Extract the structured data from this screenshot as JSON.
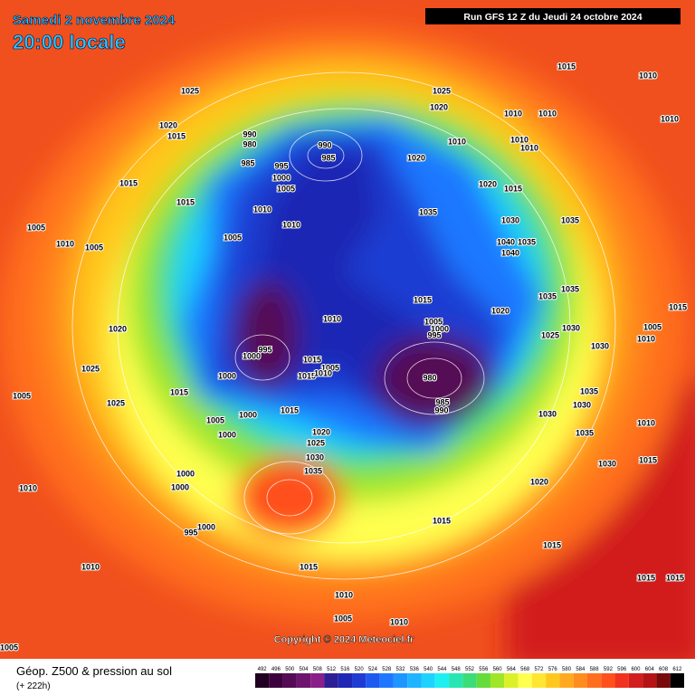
{
  "header": {
    "date": "Samedi 2 novembre 2024",
    "time": "20:00 locale",
    "run": "Run GFS 12 Z du Jeudi 24 octobre 2024"
  },
  "map": {
    "isobar_labels": [
      1015,
      1010,
      1010,
      1025,
      1025,
      1020,
      1010,
      1010,
      1020,
      1015,
      990,
      980,
      985,
      990,
      985,
      995,
      1000,
      1005,
      1020,
      1010,
      1010,
      1010,
      1015,
      1015,
      1020,
      1015,
      1010,
      1035,
      1030,
      1035,
      1010,
      1005,
      1005,
      1040,
      1035,
      1040,
      1010,
      1005,
      1035,
      1015,
      1035,
      1020,
      1010,
      1005,
      1000,
      995,
      1030,
      1025,
      1020,
      1005,
      1010,
      1000,
      995,
      1015,
      1005,
      1015,
      1010,
      980,
      1030,
      1015,
      1000,
      1025,
      985,
      990,
      1015,
      1005,
      1035,
      1030,
      1025,
      1030,
      1015,
      1000,
      1005,
      1010,
      1035,
      1000,
      1020,
      1025,
      1030,
      1035,
      1015,
      1030,
      1000,
      1000,
      1010,
      1020,
      1015,
      995,
      1000,
      1015,
      1010,
      1015,
      1010,
      1015,
      1015,
      1005,
      1010,
      1005
    ],
    "copyright": "Copyright © 2024 Meteociel.fr"
  },
  "legend": {
    "title": "Géop. Z500 & pression au sol",
    "lead_time": "(+ 222h)",
    "levels": [
      492,
      496,
      500,
      504,
      508,
      512,
      516,
      520,
      524,
      528,
      532,
      536,
      540,
      544,
      548,
      552,
      556,
      560,
      564,
      568,
      572,
      576,
      580,
      584,
      588,
      592,
      596,
      600,
      604,
      608,
      612
    ],
    "colors": [
      "#200020",
      "#3c003c",
      "#550a55",
      "#6e146e",
      "#8a1e8a",
      "#2d1e96",
      "#1e28b4",
      "#1e3cd2",
      "#1e5af0",
      "#1e78ff",
      "#1e96ff",
      "#1eb4ff",
      "#1ed2ff",
      "#1ef0f0",
      "#28e6b4",
      "#3cdc78",
      "#64dc3c",
      "#a0e628",
      "#dcf028",
      "#ffff50",
      "#ffe632",
      "#ffc81e",
      "#ffaa1e",
      "#ff8c1e",
      "#ff6e1e",
      "#ff501e",
      "#f0321e",
      "#d21e1e",
      "#b41414",
      "#780a0a",
      "#000000"
    ]
  }
}
